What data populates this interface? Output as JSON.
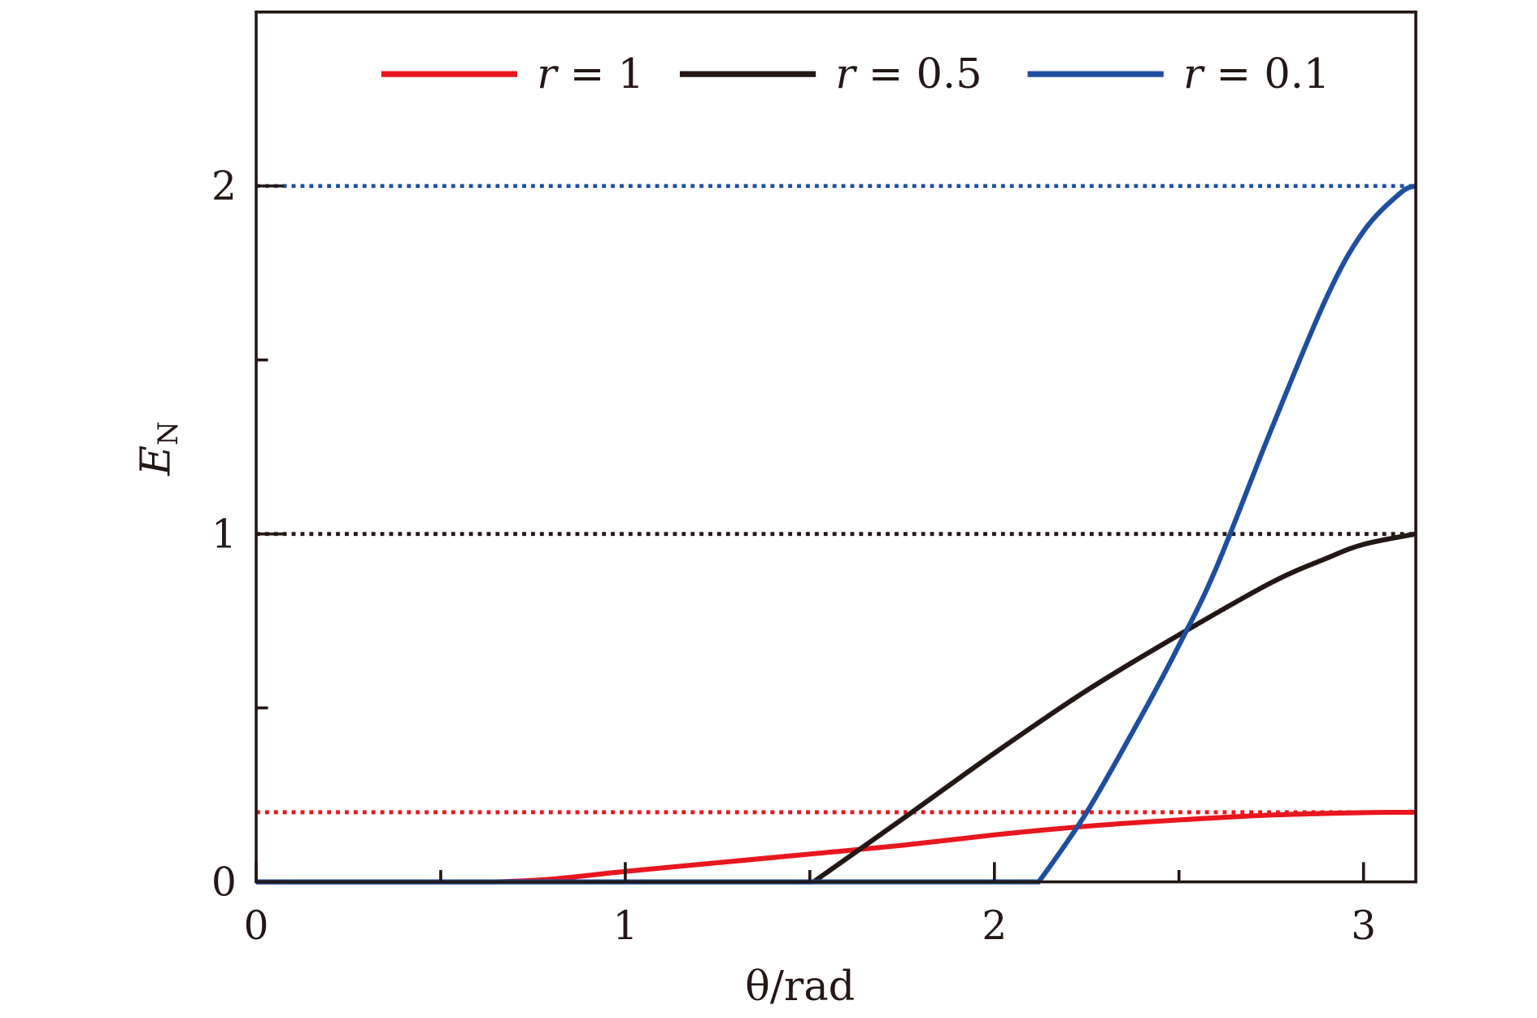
{
  "chart_data": {
    "type": "line",
    "xlabel": "θ/rad",
    "ylabel": "E_N",
    "ylabel_main": "E",
    "ylabel_sub": "N",
    "xlim": [
      0,
      3.1416
    ],
    "ylim": [
      0,
      2.5
    ],
    "x_ticks": [
      0,
      1,
      2,
      3
    ],
    "x_tick_labels": [
      "0",
      "1",
      "2",
      "3"
    ],
    "x_minor_ticks": [
      0.5,
      1.5,
      2.5
    ],
    "y_ticks": [
      0,
      1,
      2
    ],
    "y_tick_labels": [
      "0",
      "1",
      "2"
    ],
    "y_minor_ticks": [
      0.5,
      1.5
    ],
    "grid": false,
    "legend_position": "top",
    "series": [
      {
        "name": "r = 1",
        "name_var": "r",
        "name_val": "1",
        "color": "#e8161e",
        "x": [
          0,
          0.65,
          0.8,
          1.0,
          1.25,
          1.5,
          1.75,
          2.0,
          2.25,
          2.5,
          2.75,
          3.0,
          3.1416
        ],
        "y": [
          0,
          0,
          0.008,
          0.03,
          0.055,
          0.08,
          0.105,
          0.135,
          0.16,
          0.178,
          0.192,
          0.199,
          0.2
        ],
        "asymptote": 0.2
      },
      {
        "name": "r = 0.5",
        "name_var": "r",
        "name_val": "0.5",
        "color": "#231815",
        "x": [
          0,
          1.51,
          1.75,
          2.0,
          2.25,
          2.5,
          2.75,
          2.9,
          3.0,
          3.1416
        ],
        "y": [
          0,
          0,
          0.18,
          0.37,
          0.55,
          0.71,
          0.86,
          0.93,
          0.97,
          1.0
        ],
        "asymptote": 1.0
      },
      {
        "name": "r = 0.1",
        "name_var": "r",
        "name_val": "0.1",
        "color": "#1f4e9f",
        "x": [
          0,
          2.12,
          2.25,
          2.4,
          2.5,
          2.6,
          2.75,
          2.9,
          3.0,
          3.1,
          3.1416
        ],
        "y": [
          0,
          0,
          0.2,
          0.48,
          0.68,
          0.9,
          1.3,
          1.68,
          1.87,
          1.98,
          2.0
        ],
        "asymptote": 2.0
      }
    ]
  }
}
